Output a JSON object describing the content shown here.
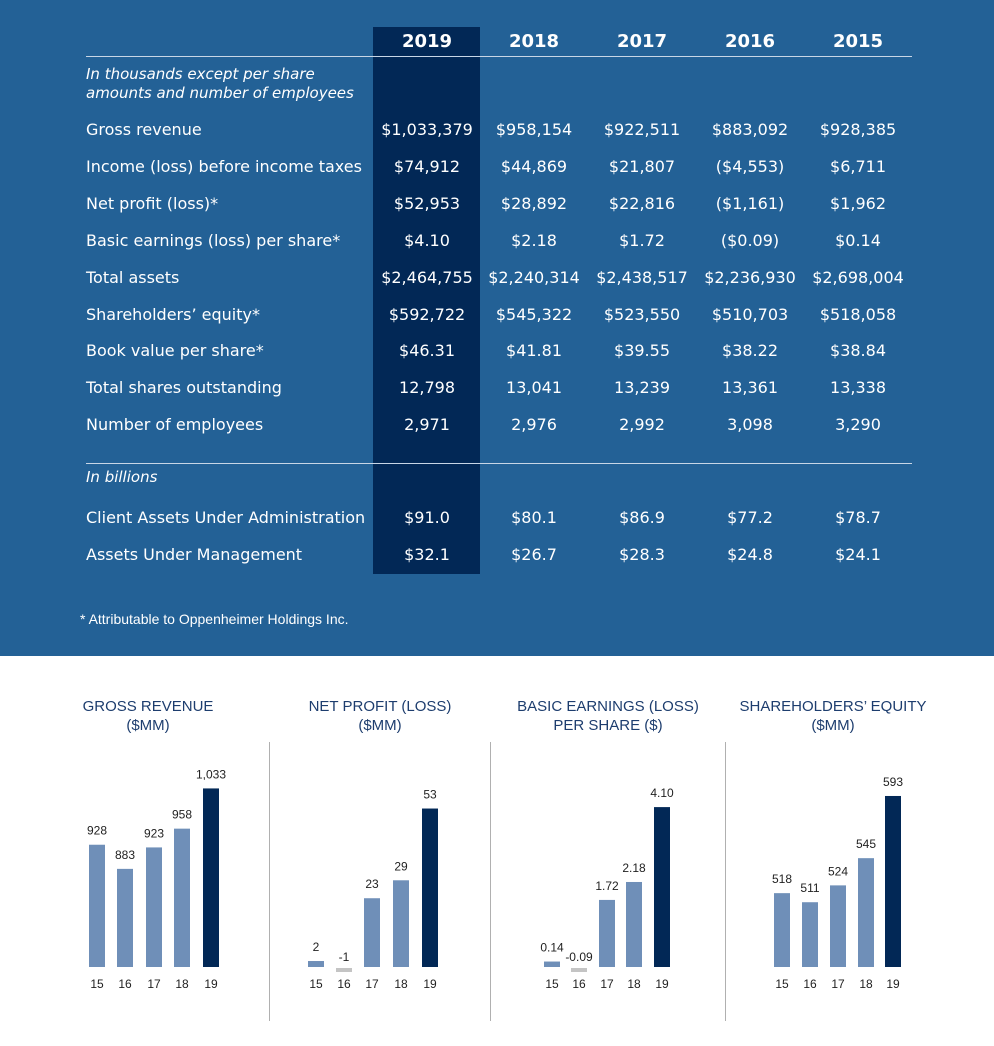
{
  "table": {
    "years": [
      "2019",
      "2018",
      "2017",
      "2016",
      "2015"
    ],
    "note": [
      "In thousands except per share",
      "amounts and number of employees"
    ],
    "rows": [
      {
        "label": "Gross revenue",
        "values": [
          "$1,033,379",
          "$958,154",
          "$922,511",
          "$883,092",
          "$928,385"
        ]
      },
      {
        "label": "Income (loss) before income taxes",
        "values": [
          "$74,912",
          "$44,869",
          "$21,807",
          "($4,553)",
          "$6,711"
        ]
      },
      {
        "label": "Net profit (loss)*",
        "values": [
          "$52,953",
          "$28,892",
          "$22,816",
          "($1,161)",
          "$1,962"
        ]
      },
      {
        "label": "Basic earnings (loss) per share*",
        "values": [
          "$4.10",
          "$2.18",
          "$1.72",
          "($0.09)",
          "$0.14"
        ]
      },
      {
        "label": "Total assets",
        "values": [
          "$2,464,755",
          "$2,240,314",
          "$2,438,517",
          "$2,236,930",
          "$2,698,004"
        ]
      },
      {
        "label": "Shareholders’ equity*",
        "values": [
          "$592,722",
          "$545,322",
          "$523,550",
          "$510,703",
          "$518,058"
        ]
      },
      {
        "label": "Book value per share*",
        "values": [
          "$46.31",
          "$41.81",
          "$39.55",
          "$38.22",
          "$38.84"
        ]
      },
      {
        "label": "Total shares outstanding",
        "values": [
          "12,798",
          "13,041",
          "13,239",
          "13,361",
          "13,338"
        ]
      },
      {
        "label": "Number of employees",
        "values": [
          "2,971",
          "2,976",
          "2,992",
          "3,098",
          "3,290"
        ]
      }
    ],
    "note2": "In billions",
    "rows2": [
      {
        "label": "Client Assets Under Administration",
        "values": [
          "$91.0",
          "$80.1",
          "$86.9",
          "$77.2",
          "$78.7"
        ]
      },
      {
        "label": "Assets Under Management",
        "values": [
          "$32.1",
          "$26.7",
          "$28.3",
          "$24.8",
          "$24.1"
        ]
      }
    ],
    "footnote": "* Attributable to Oppenheimer Holdings Inc."
  },
  "colors": {
    "panel": "#236196",
    "highlight": "#022856",
    "bar": "#6f8fb8",
    "negative": "#c4c4c4",
    "title": "#1d3d6e"
  },
  "chart_data": [
    {
      "type": "bar",
      "title": [
        "GROSS REVENUE",
        "($MM)"
      ],
      "categories": [
        "15",
        "16",
        "17",
        "18",
        "19"
      ],
      "values": [
        928,
        883,
        923,
        958,
        1033
      ],
      "labels": [
        "928",
        "883",
        "923",
        "958",
        "1,033"
      ],
      "ylim": [
        700,
        1060
      ]
    },
    {
      "type": "bar",
      "title": [
        "NET PROFIT (LOSS)",
        "($MM)"
      ],
      "categories": [
        "15",
        "16",
        "17",
        "18",
        "19"
      ],
      "values": [
        2,
        -1,
        23,
        29,
        53
      ],
      "labels": [
        "2",
        "-1",
        "23",
        "29",
        "53"
      ],
      "ylim": [
        0,
        60
      ]
    },
    {
      "type": "bar",
      "title": [
        "BASIC EARNINGS (LOSS)",
        "PER SHARE ($)"
      ],
      "categories": [
        "15",
        "16",
        "17",
        "18",
        "19"
      ],
      "values": [
        0.14,
        -0.09,
        1.72,
        2.18,
        4.1
      ],
      "labels": [
        "0.14",
        "-0.09",
        "1.72",
        "2.18",
        "4.10"
      ],
      "ylim": [
        0,
        4.6
      ]
    },
    {
      "type": "bar",
      "title": [
        "SHAREHOLDERS’ EQUITY",
        "($MM)"
      ],
      "categories": [
        "15",
        "16",
        "17",
        "18",
        "19"
      ],
      "values": [
        518,
        511,
        524,
        545,
        593
      ],
      "labels": [
        "518",
        "511",
        "524",
        "545",
        "593"
      ],
      "ylim": [
        461,
        610
      ]
    }
  ]
}
